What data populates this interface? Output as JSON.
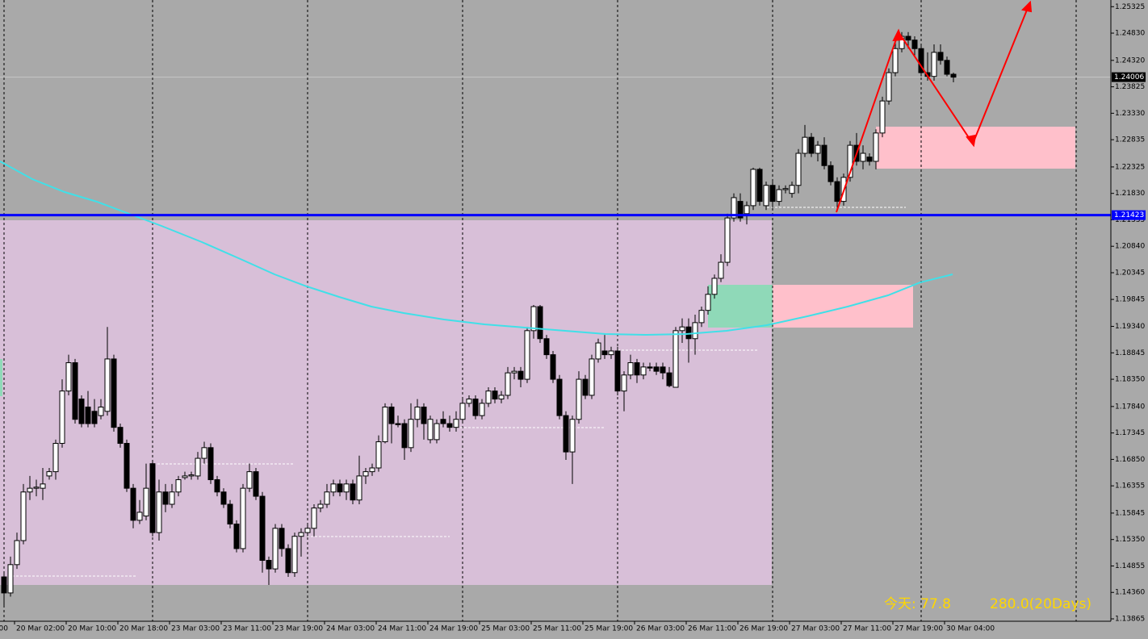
{
  "chart_data": {
    "type": "candlestick",
    "bull_color": "#ffffff",
    "bear_color": "#000000",
    "outline_color": "#000000",
    "ylim": [
      1.1382,
      1.2545
    ],
    "yticks": [
      1.25325,
      {
        "value": 1.2483,
        "label": "1.24830"
      },
      {
        "value": 1.2432,
        "label": "1.24320"
      },
      1.23825,
      {
        "value": 1.2333,
        "label": "1.23330"
      },
      1.22835,
      1.22325,
      {
        "value": 1.2183,
        "label": "1.21830"
      },
      1.21335,
      {
        "value": 1.2084,
        "label": "1.20840"
      },
      1.20345,
      1.19845,
      {
        "value": 1.1934,
        "label": "1.19340"
      },
      1.18845,
      {
        "value": 1.1835,
        "label": "1.18350"
      },
      {
        "value": 1.1784,
        "label": "1.17840"
      },
      1.17345,
      {
        "value": 1.1685,
        "label": "1.16850"
      },
      1.16355,
      1.15845,
      {
        "value": 1.1535,
        "label": "1.15350"
      },
      1.14855,
      {
        "value": 1.1436,
        "label": "1.14360"
      },
      1.13865
    ],
    "x_labels": [
      "00",
      "20 Mar 02:00",
      "20 Mar 10:00",
      "20 Mar 18:00",
      "23 Mar 03:00",
      "23 Mar 11:00",
      "23 Mar 19:00",
      "24 Mar 03:00",
      "24 Mar 11:00",
      "24 Mar 19:00",
      "25 Mar 03:00",
      "25 Mar 11:00",
      "25 Mar 19:00",
      "26 Mar 03:00",
      "26 Mar 11:00",
      "26 Mar 19:00",
      "27 Mar 03:00",
      "27 Mar 11:00",
      "27 Mar 19:00",
      "30 Mar 04:00"
    ],
    "current_price": 1.24006,
    "level_line": 1.21423,
    "level_color": "#0000ff",
    "annotations": [
      "今天: 77.8",
      "280.0(20Days)"
    ],
    "ohlc": [
      [
        1.1465,
        1.1473,
        1.141,
        1.1435
      ],
      [
        1.1435,
        1.1503,
        1.1428,
        1.1488
      ],
      [
        1.1488,
        1.1548,
        1.148,
        1.1533
      ],
      [
        1.1533,
        1.1639,
        1.1526,
        1.1624
      ],
      [
        1.1624,
        1.1654,
        1.1609,
        1.1631
      ],
      [
        1.1631,
        1.1647,
        1.1616,
        1.1633
      ],
      [
        1.1631,
        1.1669,
        1.1609,
        1.1639
      ],
      [
        1.1654,
        1.1669,
        1.1647,
        1.1662
      ],
      [
        1.1662,
        1.1722,
        1.1647,
        1.1715
      ],
      [
        1.1715,
        1.1835,
        1.1707,
        1.1813
      ],
      [
        1.1813,
        1.1881,
        1.1805,
        1.1866
      ],
      [
        1.1866,
        1.1873,
        1.1752,
        1.176
      ],
      [
        1.1798,
        1.1805,
        1.1745,
        1.1752
      ],
      [
        1.1783,
        1.1813,
        1.1745,
        1.1752
      ],
      [
        1.1775,
        1.1798,
        1.1745,
        1.1752
      ],
      [
        1.1767,
        1.1798,
        1.176,
        1.1783
      ],
      [
        1.1775,
        1.1933,
        1.1767,
        1.1873
      ],
      [
        1.1873,
        1.1881,
        1.1737,
        1.1745
      ],
      [
        1.1745,
        1.1752,
        1.1707,
        1.1715
      ],
      [
        1.1715,
        1.1722,
        1.1624,
        1.1631
      ],
      [
        1.1631,
        1.1639,
        1.1556,
        1.1571
      ],
      [
        1.1571,
        1.1609,
        1.1564,
        1.1586
      ],
      [
        1.1579,
        1.1677,
        1.1571,
        1.1631
      ],
      [
        1.1677,
        1.1684,
        1.1541,
        1.1548
      ],
      [
        1.1548,
        1.1647,
        1.1533,
        1.1624
      ],
      [
        1.1624,
        1.1639,
        1.1586,
        1.1601
      ],
      [
        1.1601,
        1.1639,
        1.1594,
        1.1624
      ],
      [
        1.1624,
        1.1654,
        1.1616,
        1.1647
      ],
      [
        1.1651,
        1.1662,
        1.1647,
        1.1654
      ],
      [
        1.1654,
        1.1662,
        1.1647,
        1.1656
      ],
      [
        1.1654,
        1.1699,
        1.1647,
        1.1687
      ],
      [
        1.1687,
        1.1718,
        1.1677,
        1.1707
      ],
      [
        1.1707,
        1.1715,
        1.1639,
        1.1647
      ],
      [
        1.1647,
        1.1654,
        1.1616,
        1.1624
      ],
      [
        1.1624,
        1.1631,
        1.1594,
        1.1601
      ],
      [
        1.1601,
        1.1609,
        1.1556,
        1.1564
      ],
      [
        1.1564,
        1.1571,
        1.1511,
        1.1518
      ],
      [
        1.1518,
        1.1639,
        1.1511,
        1.1631
      ],
      [
        1.1631,
        1.1677,
        1.1624,
        1.1662
      ],
      [
        1.1662,
        1.1669,
        1.1609,
        1.1616
      ],
      [
        1.1616,
        1.1624,
        1.1473,
        1.1496
      ],
      [
        1.1496,
        1.1503,
        1.145,
        1.148
      ],
      [
        1.148,
        1.1564,
        1.1473,
        1.1556
      ],
      [
        1.1556,
        1.1564,
        1.1503,
        1.1518
      ],
      [
        1.1518,
        1.1526,
        1.1465,
        1.1473
      ],
      [
        1.1473,
        1.1548,
        1.1465,
        1.1541
      ],
      [
        1.1541,
        1.1556,
        1.1503,
        1.1548
      ],
      [
        1.1548,
        1.1564,
        1.1541,
        1.1556
      ],
      [
        1.1556,
        1.1601,
        1.1541,
        1.1594
      ],
      [
        1.1594,
        1.1609,
        1.1586,
        1.1601
      ],
      [
        1.1601,
        1.1639,
        1.1594,
        1.1624
      ],
      [
        1.1624,
        1.1647,
        1.1616,
        1.1639
      ],
      [
        1.1639,
        1.1647,
        1.1616,
        1.1624
      ],
      [
        1.1624,
        1.1647,
        1.1609,
        1.1639
      ],
      [
        1.1639,
        1.1647,
        1.1601,
        1.1609
      ],
      [
        1.1609,
        1.1692,
        1.1601,
        1.1654
      ],
      [
        1.1654,
        1.1669,
        1.1639,
        1.1662
      ],
      [
        1.1662,
        1.1677,
        1.1654,
        1.1669
      ],
      [
        1.1669,
        1.173,
        1.1662,
        1.1718
      ],
      [
        1.1718,
        1.179,
        1.1715,
        1.1783
      ],
      [
        1.1783,
        1.179,
        1.1715,
        1.1752
      ],
      [
        1.1752,
        1.1767,
        1.1745,
        1.175
      ],
      [
        1.1752,
        1.176,
        1.1684,
        1.1707
      ],
      [
        1.1707,
        1.179,
        1.1699,
        1.176
      ],
      [
        1.176,
        1.1798,
        1.1745,
        1.1783
      ],
      [
        1.1783,
        1.179,
        1.1722,
        1.1752
      ],
      [
        1.1722,
        1.1767,
        1.1715,
        1.176
      ],
      [
        1.1722,
        1.176,
        1.1715,
        1.1752
      ],
      [
        1.176,
        1.1775,
        1.1745,
        1.1752
      ],
      [
        1.1752,
        1.1767,
        1.1737,
        1.1745
      ],
      [
        1.1745,
        1.1775,
        1.1737,
        1.176
      ],
      [
        1.176,
        1.1798,
        1.1752,
        1.179
      ],
      [
        1.179,
        1.1805,
        1.1783,
        1.1798
      ],
      [
        1.1798,
        1.1805,
        1.176,
        1.1767
      ],
      [
        1.1767,
        1.1798,
        1.176,
        1.179
      ],
      [
        1.179,
        1.182,
        1.1783,
        1.1813
      ],
      [
        1.1813,
        1.182,
        1.179,
        1.1798
      ],
      [
        1.1798,
        1.1813,
        1.179,
        1.1805
      ],
      [
        1.1805,
        1.1858,
        1.1798,
        1.1847
      ],
      [
        1.1847,
        1.1858,
        1.1835,
        1.185
      ],
      [
        1.185,
        1.1858,
        1.182,
        1.1835
      ],
      [
        1.1835,
        1.1933,
        1.1828,
        1.1926
      ],
      [
        1.1926,
        1.1974,
        1.1911,
        1.1971
      ],
      [
        1.1971,
        1.1974,
        1.1903,
        1.1911
      ],
      [
        1.1911,
        1.1918,
        1.1873,
        1.1881
      ],
      [
        1.1881,
        1.1888,
        1.1828,
        1.1835
      ],
      [
        1.1835,
        1.1843,
        1.176,
        1.1767
      ],
      [
        1.1767,
        1.1775,
        1.1684,
        1.1699
      ],
      [
        1.1699,
        1.1767,
        1.1639,
        1.176
      ],
      [
        1.176,
        1.185,
        1.1752,
        1.1835
      ],
      [
        1.1835,
        1.1843,
        1.1798,
        1.1805
      ],
      [
        1.1805,
        1.1881,
        1.1798,
        1.1873
      ],
      [
        1.1873,
        1.1911,
        1.1866,
        1.1903
      ],
      [
        1.1888,
        1.1918,
        1.1873,
        1.1881
      ],
      [
        1.1881,
        1.1896,
        1.1873,
        1.1888
      ],
      [
        1.1888,
        1.1896,
        1.1805,
        1.1813
      ],
      [
        1.1813,
        1.185,
        1.1775,
        1.1843
      ],
      [
        1.1843,
        1.1881,
        1.1835,
        1.1866
      ],
      [
        1.1866,
        1.1873,
        1.1828,
        1.1843
      ],
      [
        1.1843,
        1.1866,
        1.1835,
        1.1858
      ],
      [
        1.1858,
        1.1866,
        1.185,
        1.1856
      ],
      [
        1.1858,
        1.1866,
        1.1843,
        1.185
      ],
      [
        1.1858,
        1.1866,
        1.1835,
        1.1847
      ],
      [
        1.1847,
        1.1858,
        1.182,
        1.1823
      ],
      [
        1.182,
        1.1933,
        1.182,
        1.1926
      ],
      [
        1.1926,
        1.1949,
        1.1903,
        1.1933
      ],
      [
        1.1933,
        1.1949,
        1.1866,
        1.1911
      ],
      [
        1.1911,
        1.1956,
        1.1881,
        1.1941
      ],
      [
        1.1941,
        1.1971,
        1.1933,
        1.1964
      ],
      [
        1.1964,
        1.2009,
        1.1956,
        1.1994
      ],
      [
        1.1994,
        1.2031,
        1.1986,
        1.2024
      ],
      [
        1.2024,
        1.2069,
        1.2017,
        1.2054
      ],
      [
        1.2054,
        1.2145,
        1.2047,
        1.2137
      ],
      [
        1.2137,
        1.2183,
        1.213,
        1.2175
      ],
      [
        1.2168,
        1.2183,
        1.213,
        1.2137
      ],
      [
        1.2145,
        1.2168,
        1.2125,
        1.216
      ],
      [
        1.216,
        1.2231,
        1.2152,
        1.2228
      ],
      [
        1.2228,
        1.2231,
        1.216,
        1.2168
      ],
      [
        1.216,
        1.2205,
        1.2152,
        1.2198
      ],
      [
        1.2198,
        1.2205,
        1.2156,
        1.2168
      ],
      [
        1.2168,
        1.2198,
        1.216,
        1.219
      ],
      [
        1.219,
        1.2198,
        1.2183,
        1.2192
      ],
      [
        1.2183,
        1.2205,
        1.2175,
        1.2198
      ],
      [
        1.2198,
        1.2266,
        1.2183,
        1.2258
      ],
      [
        1.2258,
        1.2311,
        1.2251,
        1.2288
      ],
      [
        1.2288,
        1.2296,
        1.2251,
        1.2258
      ],
      [
        1.2258,
        1.2281,
        1.2243,
        1.2273
      ],
      [
        1.2273,
        1.2288,
        1.2228,
        1.2235
      ],
      [
        1.2235,
        1.2243,
        1.2198,
        1.2205
      ],
      [
        1.2205,
        1.2213,
        1.2152,
        1.2168
      ],
      [
        1.2168,
        1.222,
        1.216,
        1.2213
      ],
      [
        1.2213,
        1.2281,
        1.2205,
        1.2273
      ],
      [
        1.2273,
        1.2296,
        1.2235,
        1.2243
      ],
      [
        1.2243,
        1.2273,
        1.2228,
        1.2258
      ],
      [
        1.2251,
        1.2258,
        1.2235,
        1.2243
      ],
      [
        1.2243,
        1.2303,
        1.2228,
        1.2296
      ],
      [
        1.2296,
        1.2364,
        1.2288,
        1.2356
      ],
      [
        1.2356,
        1.2417,
        1.2349,
        1.2409
      ],
      [
        1.2409,
        1.2477,
        1.2402,
        1.2454
      ],
      [
        1.2454,
        1.2485,
        1.2447,
        1.2477
      ],
      [
        1.2477,
        1.2485,
        1.2454,
        1.247
      ],
      [
        1.247,
        1.2477,
        1.2439,
        1.2454
      ],
      [
        1.2454,
        1.2462,
        1.2402,
        1.2409
      ],
      [
        1.2409,
        1.2447,
        1.2394,
        1.2402
      ],
      [
        1.2402,
        1.2462,
        1.2394,
        1.2447
      ],
      [
        1.2447,
        1.2462,
        1.2424,
        1.2432
      ],
      [
        1.2432,
        1.2439,
        1.2402,
        1.2406
      ],
      [
        1.2406,
        1.2409,
        1.2391,
        1.24006
      ]
    ]
  }
}
